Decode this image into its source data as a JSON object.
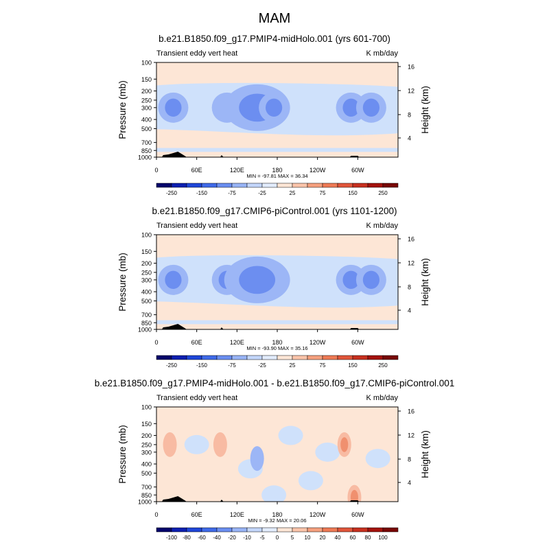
{
  "main_title": "MAM",
  "colors": {
    "neg3": "#6c8ef0",
    "neg2": "#9cb6f6",
    "neg1": "#cfe1fb",
    "pos1": "#fde6d6",
    "pos2": "#f8bba3",
    "pos3": "#f0906f",
    "topo": "#000000"
  },
  "chart_data": [
    {
      "type": "heatmap",
      "title": "b.e21.B1850.f09_g17.PMIP4-midHolo.001 (yrs 601-700)",
      "left_label": "Transient eddy vert heat",
      "right_label": "K mb/day",
      "ylabel": "Pressure (mb)",
      "y2label": "Height (km)",
      "pressure_ticks": [
        "100",
        "150",
        "200",
        "250",
        "300",
        "400",
        "500",
        "700",
        "850",
        "1000"
      ],
      "height_ticks": [
        "16",
        "12",
        "8",
        "4"
      ],
      "lon_ticks": [
        "0",
        "60E",
        "120E",
        "180",
        "120W",
        "60W"
      ],
      "minmax": "MIN = -97.81  MAX =  36.34",
      "colorbar_labels": [
        "-250",
        "-150",
        "-75",
        "-25",
        "25",
        "75",
        "150",
        "250"
      ],
      "colorbar_levels": [
        -300,
        -250,
        -200,
        -150,
        -100,
        -75,
        -50,
        -25,
        0,
        25,
        50,
        75,
        100,
        150,
        200,
        250,
        300
      ],
      "field_blobs": [
        {
          "lon": 25,
          "p": 300,
          "value": -60
        },
        {
          "lon": 105,
          "p": 300,
          "value": -50
        },
        {
          "lon": 150,
          "p": 300,
          "value": -95
        },
        {
          "lon": 175,
          "p": 300,
          "value": -60
        },
        {
          "lon": 290,
          "p": 300,
          "value": -70
        },
        {
          "lon": 320,
          "p": 300,
          "value": -60
        }
      ]
    },
    {
      "type": "heatmap",
      "title": "b.e21.B1850.f09_g17.CMIP6-piControl.001 (yrs 1101-1200)",
      "left_label": "Transient eddy vert heat",
      "right_label": "K mb/day",
      "ylabel": "Pressure (mb)",
      "y2label": "Height (km)",
      "pressure_ticks": [
        "100",
        "150",
        "200",
        "250",
        "300",
        "400",
        "500",
        "700",
        "850",
        "1000"
      ],
      "height_ticks": [
        "16",
        "12",
        "8",
        "4"
      ],
      "lon_ticks": [
        "0",
        "60E",
        "120E",
        "180",
        "120W",
        "60W"
      ],
      "minmax": "MIN = -93.90  MAX =  35.16",
      "colorbar_labels": [
        "-250",
        "-150",
        "-75",
        "-25",
        "25",
        "75",
        "150",
        "250"
      ],
      "colorbar_levels": [
        -300,
        -250,
        -200,
        -150,
        -100,
        -75,
        -50,
        -25,
        0,
        25,
        50,
        75,
        100,
        150,
        200,
        250,
        300
      ],
      "field_blobs": [
        {
          "lon": 25,
          "p": 300,
          "value": -60
        },
        {
          "lon": 105,
          "p": 300,
          "value": -55
        },
        {
          "lon": 150,
          "p": 300,
          "value": -90
        },
        {
          "lon": 290,
          "p": 300,
          "value": -75
        },
        {
          "lon": 320,
          "p": 300,
          "value": -60
        }
      ]
    },
    {
      "type": "heatmap",
      "title": "b.e21.B1850.f09_g17.PMIP4-midHolo.001 - b.e21.B1850.f09_g17.CMIP6-piControl.001",
      "left_label": "Transient eddy vert heat",
      "right_label": "K mb/day",
      "ylabel": "Pressure (mb)",
      "y2label": "Height (km)",
      "pressure_ticks": [
        "100",
        "150",
        "200",
        "250",
        "300",
        "400",
        "500",
        "700",
        "850",
        "1000"
      ],
      "height_ticks": [
        "16",
        "12",
        "8",
        "4"
      ],
      "lon_ticks": [
        "0",
        "60E",
        "120E",
        "180",
        "120W",
        "60W"
      ],
      "minmax": "MIN =  -9.32  MAX =  20.06",
      "colorbar_labels": [
        "-100",
        "-80",
        "-60",
        "-40",
        "-20",
        "-10",
        "-5",
        "0",
        "5",
        "10",
        "20",
        "40",
        "60",
        "80",
        "100"
      ],
      "colorbar_levels": [
        -120,
        -100,
        -80,
        -60,
        -40,
        -20,
        -10,
        -5,
        0,
        5,
        10,
        20,
        40,
        60,
        80,
        100,
        120
      ],
      "field_blobs": [
        {
          "lon": 20,
          "p": 250,
          "value": 8
        },
        {
          "lon": 95,
          "p": 250,
          "value": 7
        },
        {
          "lon": 280,
          "p": 250,
          "value": 15
        },
        {
          "lon": 295,
          "p": 900,
          "value": 20
        },
        {
          "lon": 150,
          "p": 350,
          "value": -6
        }
      ]
    }
  ]
}
